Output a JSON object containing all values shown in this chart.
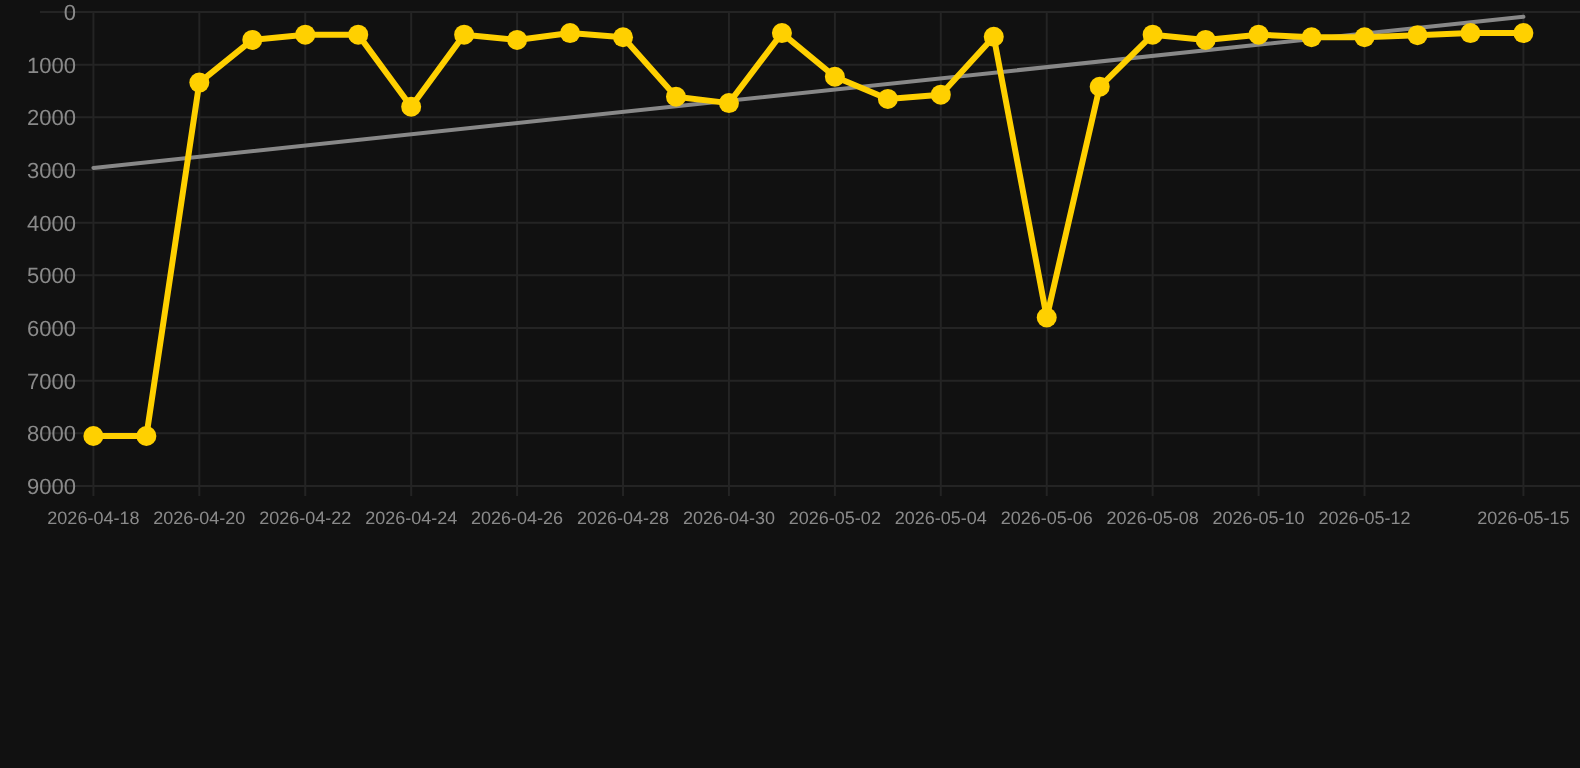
{
  "chart_data": {
    "type": "line",
    "x": [
      "2026-04-18",
      "2026-04-19",
      "2026-04-20",
      "2026-04-21",
      "2026-04-22",
      "2026-04-23",
      "2026-04-24",
      "2026-04-25",
      "2026-04-26",
      "2026-04-27",
      "2026-04-28",
      "2026-04-29",
      "2026-04-30",
      "2026-05-01",
      "2026-05-02",
      "2026-05-03",
      "2026-05-04",
      "2026-05-05",
      "2026-05-06",
      "2026-05-07",
      "2026-05-08",
      "2026-05-09",
      "2026-05-10",
      "2026-05-11",
      "2026-05-12",
      "2026-05-13",
      "2026-05-14",
      "2026-05-15"
    ],
    "series": [
      {
        "color": "#ffd000",
        "marker": "circle",
        "values": [
          8050,
          8050,
          1340,
          530,
          430,
          430,
          1800,
          430,
          530,
          400,
          480,
          1610,
          1730,
          400,
          1230,
          1650,
          1570,
          470,
          5800,
          1420,
          430,
          530,
          430,
          480,
          480,
          440,
          400,
          400
        ]
      },
      {
        "type": "line",
        "color": "#888888",
        "marker": "none",
        "x": [
          "2026-04-18",
          "2026-05-15"
        ],
        "values": [
          2960,
          90
        ]
      }
    ],
    "xlim": [
      "2026-04-18",
      "2026-05-15"
    ],
    "xticks": [
      "2026-04-18",
      "2026-04-20",
      "2026-04-22",
      "2026-04-24",
      "2026-04-26",
      "2026-04-28",
      "2026-04-30",
      "2026-05-02",
      "2026-05-04",
      "2026-05-06",
      "2026-05-08",
      "2026-05-10",
      "2026-05-12",
      "2026-05-15"
    ],
    "ylim": [
      9000,
      0
    ],
    "yticks": [
      0,
      1000,
      2000,
      3000,
      4000,
      5000,
      6000,
      7000,
      8000,
      9000
    ],
    "grid": true
  }
}
